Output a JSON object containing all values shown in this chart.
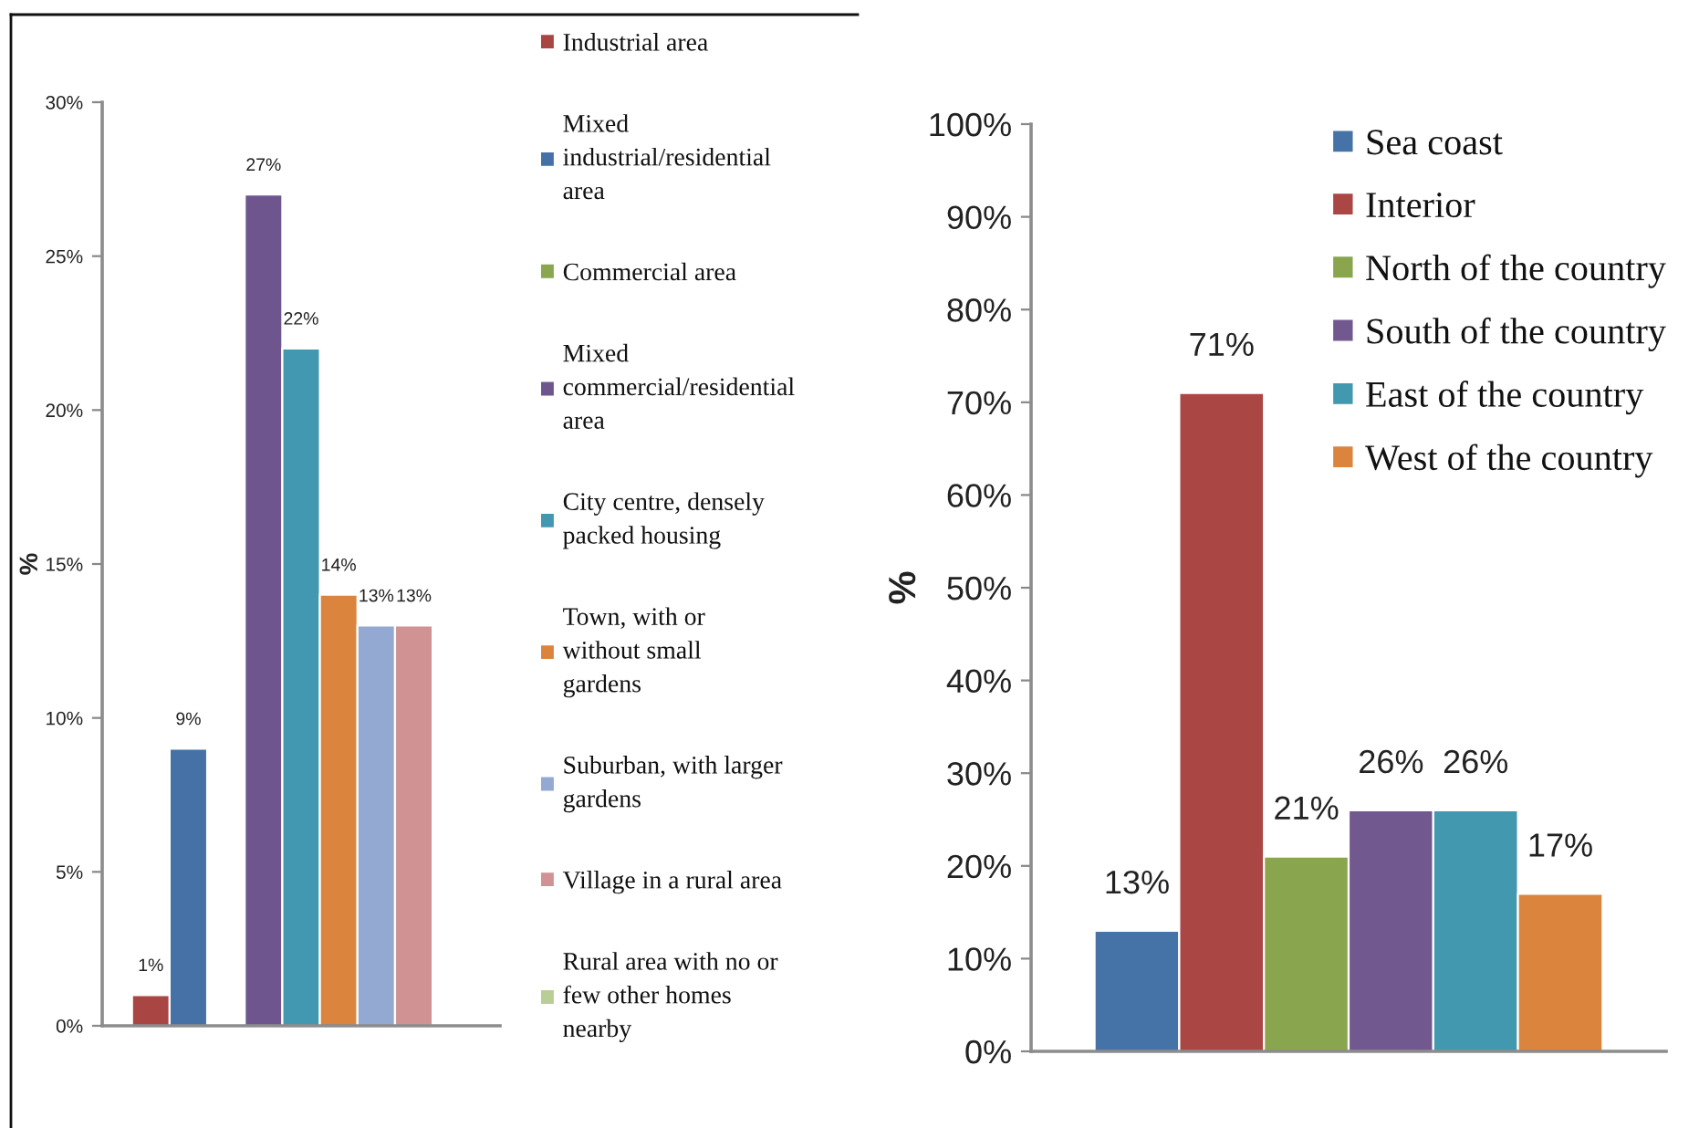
{
  "chart_data": [
    {
      "type": "bar",
      "categories": [
        null
      ],
      "ylabel": "%",
      "ylim": [
        0,
        30
      ],
      "yticks": [
        {
          "value": 0,
          "label": "0%"
        },
        {
          "value": 5,
          "label": "5%"
        },
        {
          "value": 10,
          "label": "10%"
        },
        {
          "value": 15,
          "label": "15%"
        },
        {
          "value": 20,
          "label": "20%"
        },
        {
          "value": 25,
          "label": "25%"
        },
        {
          "value": 30,
          "label": "30%"
        }
      ],
      "legend": "right",
      "series": [
        {
          "name": "Industrial area",
          "color": "#a94543",
          "values": [
            1
          ],
          "value_labels": [
            "1%"
          ]
        },
        {
          "name": "Mixed\nindustrial/residential\narea",
          "color": "#4571a7",
          "values": [
            9
          ],
          "value_labels": [
            "9%"
          ]
        },
        {
          "name": "Commercial area",
          "color": "#8aa64e",
          "values": [
            null
          ],
          "value_labels": [
            null
          ]
        },
        {
          "name": "Mixed\ncommercial/residential\narea",
          "color": "#6f558e",
          "values": [
            27
          ],
          "value_labels": [
            "27%"
          ]
        },
        {
          "name": "City centre, densely\npacked housing",
          "color": "#4298b1",
          "values": [
            22
          ],
          "value_labels": [
            "22%"
          ]
        },
        {
          "name": "Town, with or\nwithout small\ngardens",
          "color": "#db843d",
          "values": [
            14
          ],
          "value_labels": [
            "14%"
          ]
        },
        {
          "name": "Suburban, with larger\ngardens",
          "color": "#94a9d2",
          "values": [
            13
          ],
          "value_labels": [
            "13%"
          ]
        },
        {
          "name": "Village in a rural area",
          "color": "#d09293",
          "values": [
            13
          ],
          "value_labels": [
            "13%"
          ]
        },
        {
          "name": "Rural area with no or\nfew other homes\nnearby",
          "color": "#b9cd97",
          "values": [
            null
          ],
          "value_labels": [
            null
          ]
        }
      ]
    },
    {
      "type": "bar",
      "categories": [
        null
      ],
      "ylabel": "%",
      "ylim": [
        0,
        100
      ],
      "yticks": [
        {
          "value": 0,
          "label": "0%"
        },
        {
          "value": 10,
          "label": "10%"
        },
        {
          "value": 20,
          "label": "20%"
        },
        {
          "value": 30,
          "label": "30%"
        },
        {
          "value": 40,
          "label": "40%"
        },
        {
          "value": 50,
          "label": "50%"
        },
        {
          "value": 60,
          "label": "60%"
        },
        {
          "value": 70,
          "label": "70%"
        },
        {
          "value": 80,
          "label": "80%"
        },
        {
          "value": 90,
          "label": "90%"
        },
        {
          "value": 100,
          "label": "100%"
        }
      ],
      "legend": "top right",
      "series": [
        {
          "name": "Sea coast",
          "color": "#4572a7",
          "values": [
            13
          ],
          "value_labels": [
            "13%"
          ]
        },
        {
          "name": "Interior",
          "color": "#aa4643",
          "values": [
            71
          ],
          "value_labels": [
            "71%"
          ]
        },
        {
          "name": "North of the country",
          "color": "#89a54e",
          "values": [
            21
          ],
          "value_labels": [
            "21%"
          ]
        },
        {
          "name": "South of the country",
          "color": "#71588f",
          "values": [
            26
          ],
          "value_labels": [
            "26%"
          ]
        },
        {
          "name": "East of the country",
          "color": "#4198af",
          "values": [
            26
          ],
          "value_labels": [
            "26%"
          ]
        },
        {
          "name": "West of the country",
          "color": "#db843d",
          "values": [
            17
          ],
          "value_labels": [
            "17%"
          ]
        }
      ]
    }
  ]
}
